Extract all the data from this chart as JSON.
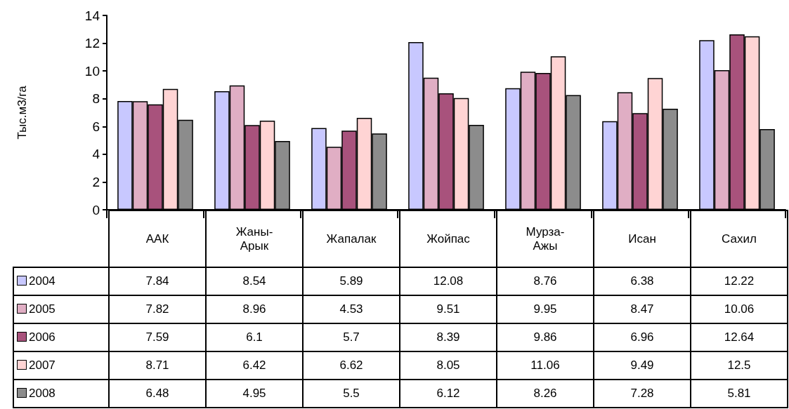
{
  "chart_data": {
    "type": "bar",
    "ylabel": "Тыс.м3/га",
    "categories": [
      "ААК",
      "Жаны-Арык",
      "Жапалак",
      "Жойпас",
      "Мурза-Ажы",
      "Исан",
      "Сахил"
    ],
    "series": [
      {
        "name": "2004",
        "color": "#c8c8ff",
        "values": [
          7.84,
          8.54,
          5.89,
          12.08,
          8.76,
          6.38,
          12.22
        ]
      },
      {
        "name": "2005",
        "color": "#e0aec4",
        "values": [
          7.82,
          8.96,
          4.53,
          9.51,
          9.95,
          8.47,
          10.06
        ]
      },
      {
        "name": "2006",
        "color": "#a8527c",
        "values": [
          7.59,
          6.1,
          5.7,
          8.39,
          9.86,
          6.96,
          12.64
        ]
      },
      {
        "name": "2007",
        "color": "#ffd4d4",
        "values": [
          8.71,
          6.42,
          6.62,
          8.05,
          11.06,
          9.49,
          12.5
        ]
      },
      {
        "name": "2008",
        "color": "#8c8c8c",
        "values": [
          6.48,
          4.95,
          5.5,
          6.12,
          8.26,
          7.28,
          5.81
        ]
      }
    ],
    "ylim": [
      0,
      14
    ],
    "yticks": [
      0,
      2,
      4,
      6,
      8,
      10,
      12,
      14
    ],
    "grid": false,
    "legend": "bottom",
    "data_labels": true
  }
}
